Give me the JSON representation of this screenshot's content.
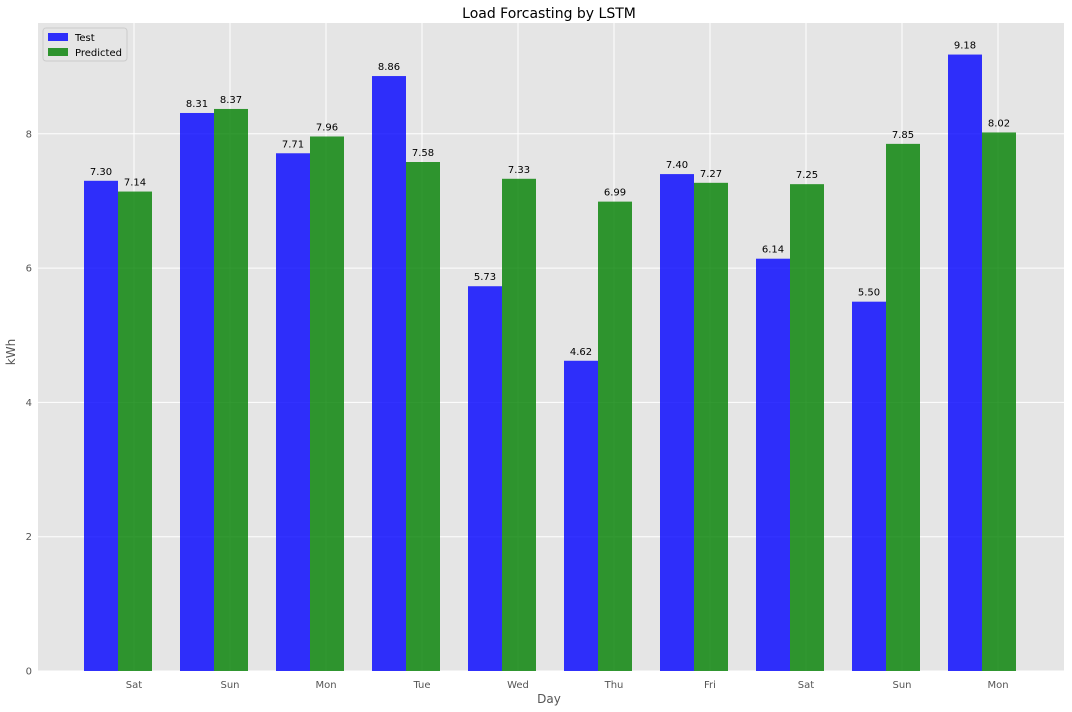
{
  "chart_data": {
    "type": "bar",
    "title": "Load Forcasting by LSTM",
    "xlabel": "Day",
    "ylabel": "kWh",
    "ylim": [
      0,
      9.65
    ],
    "yticks": [
      0,
      2,
      4,
      6,
      8
    ],
    "grid": true,
    "legend_position": "top-left",
    "categories": [
      "Sat",
      "Sun",
      "Mon",
      "Tue",
      "Wed",
      "Thu",
      "Fri",
      "Sat",
      "Sun",
      "Mon"
    ],
    "series": [
      {
        "name": "Test",
        "color": "#0000ff",
        "values": [
          7.3,
          8.31,
          7.71,
          8.86,
          5.73,
          4.62,
          7.4,
          6.14,
          5.5,
          9.18
        ],
        "labels": [
          "7.30",
          "8.31",
          "7.71",
          "8.86",
          "5.73",
          "4.62",
          "7.40",
          "6.14",
          "5.50",
          "9.18"
        ]
      },
      {
        "name": "Predicted",
        "color": "#008000",
        "values": [
          7.14,
          8.37,
          7.96,
          7.58,
          7.33,
          6.99,
          7.27,
          7.25,
          7.85,
          8.02
        ],
        "labels": [
          "7.14",
          "8.37",
          "7.96",
          "7.58",
          "7.33",
          "6.99",
          "7.27",
          "7.25",
          "7.85",
          "8.02"
        ]
      }
    ]
  }
}
